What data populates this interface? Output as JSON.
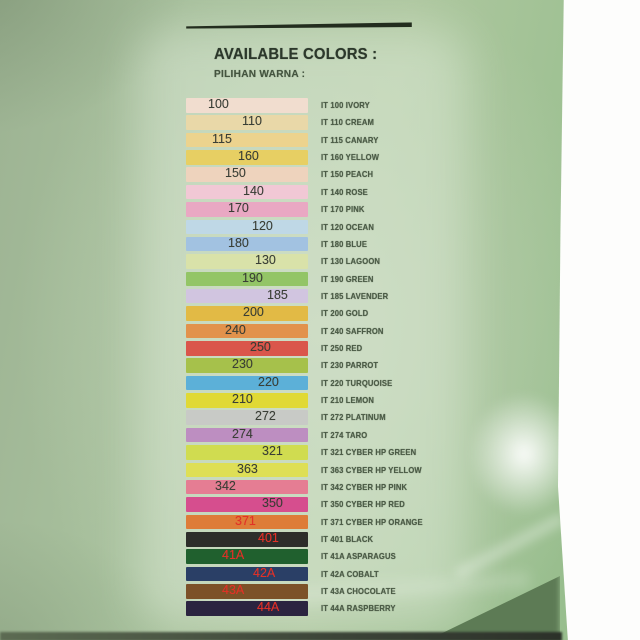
{
  "title": "AVAILABLE COLORS :",
  "subtitle": "PILIHAN WARNA :",
  "colors": {
    "background_green": "#a5bd9a",
    "title_text": "#2c382b",
    "label_text": "#4c5c47",
    "number_dark": "#3a3f36",
    "number_red": "#e23127"
  },
  "rows": [
    {
      "code": "100",
      "label": "IT 100 IVORY",
      "swatch": "#f1ddcf",
      "number_color": "dark",
      "indent": 22
    },
    {
      "code": "110",
      "label": "IT 110 CREAM",
      "swatch": "#e9d8a8",
      "number_color": "dark",
      "indent": 56
    },
    {
      "code": "115",
      "label": "IT 115 CANARY",
      "swatch": "#ecd38e",
      "number_color": "dark",
      "indent": 26
    },
    {
      "code": "160",
      "label": "IT 160 YELLOW",
      "swatch": "#e7cf63",
      "number_color": "dark",
      "indent": 52
    },
    {
      "code": "150",
      "label": "IT 150 PEACH",
      "swatch": "#eed3bd",
      "number_color": "dark",
      "indent": 39
    },
    {
      "code": "140",
      "label": "IT 140 ROSE",
      "swatch": "#f1c8d5",
      "number_color": "dark",
      "indent": 57
    },
    {
      "code": "170",
      "label": "IT 170 PINK",
      "swatch": "#e9a8c3",
      "number_color": "dark",
      "indent": 42
    },
    {
      "code": "120",
      "label": "IT 120 OCEAN",
      "swatch": "#bfd8e6",
      "number_color": "dark",
      "indent": 66
    },
    {
      "code": "180",
      "label": "IT 180 BLUE",
      "swatch": "#a2c2e1",
      "number_color": "dark",
      "indent": 42
    },
    {
      "code": "130",
      "label": "IT 130 LAGOON",
      "swatch": "#d9e2a9",
      "number_color": "dark",
      "indent": 69
    },
    {
      "code": "190",
      "label": "IT 190 GREEN",
      "swatch": "#93c566",
      "number_color": "dark",
      "indent": 56
    },
    {
      "code": "185",
      "label": "IT 185 LAVENDER",
      "swatch": "#d1c5e0",
      "number_color": "dark",
      "indent": 81
    },
    {
      "code": "200",
      "label": "IT 200 GOLD",
      "swatch": "#e2ba45",
      "number_color": "dark",
      "indent": 57
    },
    {
      "code": "240",
      "label": "IT 240 SAFFRON",
      "swatch": "#e2924c",
      "number_color": "dark",
      "indent": 39
    },
    {
      "code": "250",
      "label": "IT 250 RED",
      "swatch": "#da564b",
      "number_color": "dark",
      "indent": 64
    },
    {
      "code": "230",
      "label": "IT 230 PARROT",
      "swatch": "#a6c14b",
      "number_color": "dark",
      "indent": 46
    },
    {
      "code": "220",
      "label": "IT 220 TURQUOISE",
      "swatch": "#5cb0d8",
      "number_color": "dark",
      "indent": 72
    },
    {
      "code": "210",
      "label": "IT 210 LEMON",
      "swatch": "#e0d935",
      "number_color": "dark",
      "indent": 46
    },
    {
      "code": "272",
      "label": "IT 272 PLATINUM",
      "swatch": "#c8cac6",
      "number_color": "dark",
      "indent": 69
    },
    {
      "code": "274",
      "label": "IT 274 TARO",
      "swatch": "#bd8ec1",
      "number_color": "dark",
      "indent": 46
    },
    {
      "code": "321",
      "label": "IT 321 CYBER HP GREEN",
      "swatch": "#d0dc50",
      "number_color": "dark",
      "indent": 76
    },
    {
      "code": "363",
      "label": "IT 363 CYBER HP YELLOW",
      "swatch": "#dedf55",
      "number_color": "dark",
      "indent": 51
    },
    {
      "code": "342",
      "label": "IT 342 CYBER HP PINK",
      "swatch": "#e57d93",
      "number_color": "dark",
      "indent": 29
    },
    {
      "code": "350",
      "label": "IT 350 CYBER HP RED",
      "swatch": "#d64e8e",
      "number_color": "dark",
      "indent": 76
    },
    {
      "code": "371",
      "label": "IT 371 CYBER HP ORANGE",
      "swatch": "#de7c38",
      "number_color": "red",
      "indent": 49
    },
    {
      "code": "401",
      "label": "IT 401 BLACK",
      "swatch": "#2d2d2a",
      "number_color": "red",
      "indent": 72
    },
    {
      "code": "41A",
      "label": "IT 41A ASPARAGUS",
      "swatch": "#20602e",
      "number_color": "red",
      "indent": 36
    },
    {
      "code": "42A",
      "label": "IT 42A COBALT",
      "swatch": "#2a3f66",
      "number_color": "red",
      "indent": 67
    },
    {
      "code": "43A",
      "label": "IT 43A CHOCOLATE",
      "swatch": "#7c5128",
      "number_color": "red",
      "indent": 36
    },
    {
      "code": "44A",
      "label": "IT 44A RASPBERRY",
      "swatch": "#2b2440",
      "number_color": "red",
      "indent": 71
    }
  ],
  "layout_meta": {
    "row_top_start": 98,
    "row_pitch": 17.36
  }
}
